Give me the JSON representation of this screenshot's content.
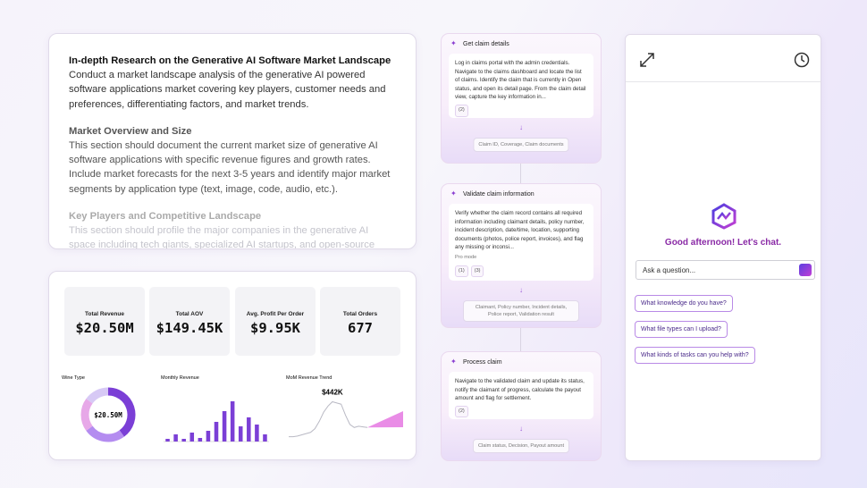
{
  "research": {
    "title": "In-depth Research on the Generative AI Software Market Landscape",
    "intro": "Conduct a market landscape analysis of the generative AI powered software applications market covering key players, customer needs and preferences, differentiating factors, and market trends.",
    "sections": [
      {
        "heading": "Market Overview and Size",
        "body": "This section should document the current market size of generative AI software applications with specific revenue figures and growth rates. Include market forecasts for the next 3-5 years and identify major market segments by application type (text, image, code, audio, etc.)."
      },
      {
        "heading": "Key Players and Competitive Landscape",
        "body": "This section should profile the major companies in the generative AI space including tech giants, specialized AI startups, and open-source initiatives."
      }
    ]
  },
  "dashboard": {
    "kpis": [
      {
        "label": "Total Revenue",
        "value": "$20.50M"
      },
      {
        "label": "Total AOV",
        "value": "$149.45K"
      },
      {
        "label": "Avg. Profit Per Order",
        "value": "$9.95K"
      },
      {
        "label": "Total Orders",
        "value": "677"
      }
    ],
    "wine_type": {
      "type": "pie",
      "title": "Wine Type",
      "center_label": "$20.50M",
      "values": [
        40,
        25,
        20,
        15
      ],
      "colors": [
        "#7b3fd6",
        "#b48cf0",
        "#e7a8e8",
        "#d7c9f5"
      ]
    },
    "monthly_revenue": {
      "type": "bar",
      "title": "Monthly Revenue",
      "values": [
        3,
        8,
        3,
        10,
        4,
        12,
        22,
        34,
        45,
        17,
        27,
        19,
        8
      ],
      "ylim": [
        0,
        50
      ],
      "color": "#7b3fd6"
    },
    "mom_trend": {
      "type": "line",
      "title": "MoM Revenue Trend",
      "annotation": "$442K",
      "values": [
        5,
        5,
        6,
        8,
        10,
        12,
        18,
        30,
        45,
        55,
        62,
        60,
        58,
        40,
        25,
        20,
        22,
        21,
        20
      ],
      "ylim": [
        0,
        70
      ],
      "color": "#b9b9c4"
    }
  },
  "workflow": {
    "steps": [
      {
        "title": "Get claim details",
        "description": "Log in claims portal with the admin credentials. Navigate to the claims dashboard and locate the list of claims. Identify the claim that is currently in Open status, and open its detail page. From the claim detail view, capture the key information in...",
        "mode": null,
        "badges": [
          "(2)"
        ],
        "outputs": "Claim ID, Coverage, Claim documents"
      },
      {
        "title": "Validate claim information",
        "description": "Verify whether the claim record contains all required information including claimant details, policy number, incident description, date/time, location, supporting documents (photos, police report, invoices), and flag any missing or inconsi...",
        "mode": "Pro mode",
        "badges": [
          "(1)",
          "(3)"
        ],
        "outputs": "Claimant, Policy number, Incident details, Police report, Validation result"
      },
      {
        "title": "Process claim",
        "description": "Navigate to the validated claim and update its status, notify the claimant of progress, calculate the payout amount and flag for settlement.",
        "mode": null,
        "badges": [
          "(2)"
        ],
        "outputs": "Claim status, Decision, Payout amount"
      }
    ]
  },
  "chat": {
    "greeting": "Good afternoon! Let's chat.",
    "placeholder": "Ask a question...",
    "suggestions": [
      "What knowledge do you have?",
      "What file types can I upload?",
      "What kinds of tasks can you help with?"
    ]
  }
}
